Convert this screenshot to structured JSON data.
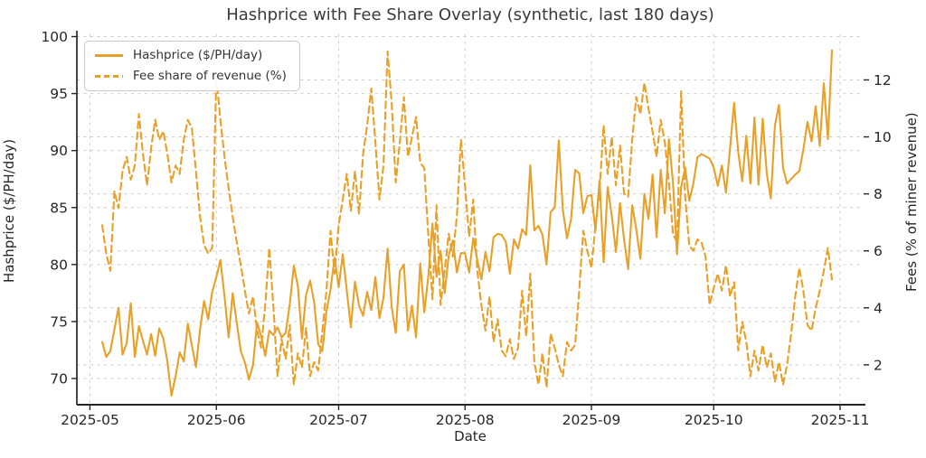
{
  "chart_data": {
    "type": "line",
    "title": "Hashprice with Fee Share Overlay (synthetic, last 180 days)",
    "xlabel": "Date",
    "ylabel_left": "Hashprice ($/PH/day)",
    "ylabel_right": "Fees (% of miner revenue)",
    "x_tick_labels": [
      "2025-05",
      "2025-06",
      "2025-07",
      "2025-08",
      "2025-09",
      "2025-10",
      "2025-11"
    ],
    "x_tick_day_offsets": [
      -3,
      28,
      58,
      89,
      120,
      150,
      181
    ],
    "y_left_ticks": [
      70,
      75,
      80,
      85,
      90,
      95,
      100
    ],
    "y_right_ticks": [
      2,
      4,
      6,
      8,
      10,
      12
    ],
    "ylim_left": [
      67.7,
      100.2
    ],
    "ylim_right": [
      0.6,
      13.6
    ],
    "x_start_date": "2025-05-04",
    "x_end_date": "2025-10-30",
    "x_frequency": "daily",
    "n_points": 180,
    "grid": true,
    "legend_position": "upper left",
    "line_color": "#E8A128",
    "series": [
      {
        "name": "Hashprice ($/PH/day)",
        "axis": "left",
        "style": "solid",
        "values": [
          73.2,
          71.9,
          72.4,
          74.3,
          76.2,
          72.1,
          73.1,
          76.6,
          71.9,
          74.6,
          73.3,
          72.1,
          73.9,
          72.0,
          74.4,
          73.5,
          71.5,
          68.5,
          70.2,
          72.3,
          71.5,
          74.8,
          72.9,
          71.0,
          74.3,
          76.8,
          75.2,
          77.6,
          78.9,
          80.4,
          77.2,
          73.6,
          77.5,
          74.9,
          72.4,
          71.4,
          69.9,
          71.2,
          74.9,
          73.7,
          72.0,
          74.2,
          73.8,
          74.5,
          73.6,
          74.0,
          76.5,
          79.9,
          78.1,
          73.5,
          77.3,
          78.6,
          76.7,
          73.0,
          72.4,
          75.9,
          77.8,
          80.6,
          78.0,
          80.9,
          77.7,
          74.5,
          78.5,
          76.4,
          75.5,
          77.6,
          76.0,
          78.9,
          75.3,
          77.1,
          81.4,
          76.3,
          74.0,
          79.4,
          80.0,
          74.2,
          76.4,
          73.6,
          80.1,
          75.8,
          79.0,
          83.6,
          78.9,
          81.2,
          77.5,
          80.8,
          82.1,
          79.3,
          81.0,
          81.0,
          79.3,
          82.3,
          80.4,
          78.7,
          81.1,
          79.4,
          82.4,
          82.7,
          82.6,
          82.0,
          79.2,
          82.2,
          81.4,
          83.1,
          82.6,
          88.7,
          83.0,
          83.4,
          82.6,
          80.0,
          84.6,
          85.0,
          90.9,
          84.8,
          82.3,
          84.0,
          88.3,
          88.0,
          84.5,
          86.0,
          86.1,
          83.0,
          87.4,
          80.2,
          86.8,
          84.3,
          81.1,
          85.4,
          82.2,
          79.6,
          85.2,
          83.1,
          80.5,
          86.2,
          84.0,
          87.9,
          82.4,
          88.3,
          84.5,
          91.0,
          87.2,
          80.9,
          86.8,
          88.5,
          85.6,
          87.1,
          89.4,
          89.7,
          89.5,
          89.3,
          88.5,
          86.9,
          88.7,
          86.3,
          90.2,
          94.2,
          89.9,
          87.3,
          91.3,
          87.1,
          92.9,
          87.0,
          92.8,
          88.0,
          85.8,
          92.2,
          94.0,
          88.5,
          87.1,
          87.5,
          87.9,
          88.2,
          90.1,
          92.5,
          90.8,
          93.9,
          90.4,
          95.9,
          91.0,
          98.8
        ]
      },
      {
        "name": "Fee share of revenue (%)",
        "axis": "right",
        "style": "dashed",
        "values": [
          6.9,
          5.9,
          5.3,
          8.1,
          7.5,
          8.8,
          9.3,
          8.5,
          9.0,
          10.8,
          9.4,
          8.3,
          9.6,
          10.6,
          9.9,
          10.2,
          9.4,
          8.4,
          9.0,
          8.7,
          9.9,
          10.6,
          10.3,
          8.8,
          7.2,
          6.2,
          5.9,
          6.1,
          12.1,
          10.6,
          9.3,
          8.2,
          7.2,
          6.3,
          5.5,
          4.6,
          3.8,
          4.4,
          3.2,
          2.6,
          4.1,
          6.1,
          4.0,
          1.6,
          2.9,
          2.2,
          3.4,
          1.3,
          2.4,
          1.9,
          3.3,
          1.6,
          2.1,
          1.8,
          3.2,
          4.6,
          6.7,
          5.2,
          6.9,
          7.8,
          8.7,
          7.4,
          8.8,
          7.3,
          9.4,
          10.4,
          11.7,
          9.8,
          7.8,
          9.0,
          13.0,
          11.2,
          8.4,
          9.8,
          11.4,
          9.3,
          10.0,
          10.7,
          9.1,
          8.9,
          6.5,
          4.3,
          7.6,
          4.1,
          5.3,
          6.6,
          5.8,
          7.2,
          9.9,
          8.3,
          6.5,
          7.8,
          5.3,
          4.1,
          3.2,
          4.4,
          2.8,
          3.6,
          2.5,
          2.3,
          2.9,
          2.2,
          2.6,
          4.6,
          3.0,
          5.2,
          2.1,
          1.3,
          2.4,
          1.2,
          3.1,
          2.6,
          2.0,
          1.6,
          2.8,
          2.5,
          2.7,
          4.6,
          6.7,
          6.0,
          5.4,
          6.9,
          8.1,
          10.4,
          8.7,
          10.0,
          8.3,
          9.7,
          8.0,
          7.9,
          9.9,
          11.4,
          10.8,
          11.9,
          11.0,
          10.2,
          9.3,
          10.6,
          9.8,
          8.4,
          6.6,
          6.3,
          11.6,
          7.9,
          6.2,
          6.0,
          6.4,
          6.3,
          5.8,
          4.1,
          4.7,
          5.2,
          4.6,
          5.5,
          4.4,
          4.9,
          2.5,
          3.5,
          2.8,
          1.6,
          2.5,
          1.8,
          2.7,
          1.9,
          2.4,
          1.4,
          2.1,
          1.3,
          2.0,
          3.1,
          4.4,
          5.4,
          4.6,
          3.4,
          3.2,
          4.0,
          4.6,
          5.3,
          6.1,
          5.0
        ]
      }
    ]
  },
  "legend": {
    "items": [
      {
        "label": "Hashprice ($/PH/day)"
      },
      {
        "label": "Fee share of revenue (%)"
      }
    ]
  },
  "style": {
    "accent_color": "#E8A128",
    "grid_color": "#cdcdcd",
    "spine_color": "#262626",
    "tick_text_color": "#262626",
    "title_color": "#3a3a3a",
    "background": "#ffffff"
  }
}
